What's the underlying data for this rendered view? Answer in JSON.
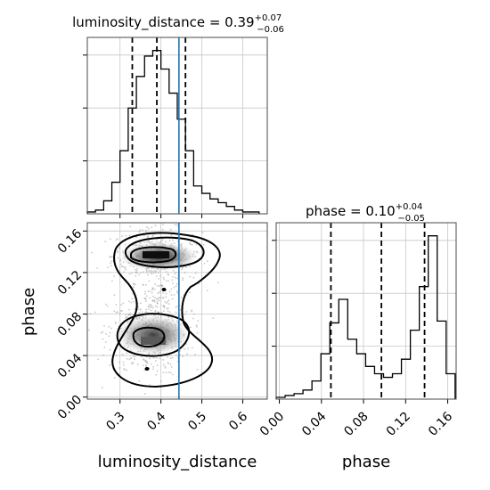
{
  "truth_color": "#1f77b4",
  "panels": {
    "luminosity_title": {
      "main": "luminosity_distance = 0.39",
      "sup": "+0.07",
      "sub": "−0.06"
    },
    "phase_title": {
      "main": "phase = 0.10",
      "sup": "+0.04",
      "sub": "−0.05"
    },
    "x_label_left": "luminosity_distance",
    "x_label_right": "phase",
    "y_label_left": "phase"
  },
  "chart_data": [
    {
      "type": "histogram",
      "variable": "luminosity_distance",
      "xlim": [
        0.22,
        0.66
      ],
      "bin_edges": [
        0.22,
        0.24,
        0.26,
        0.28,
        0.3,
        0.32,
        0.34,
        0.36,
        0.38,
        0.4,
        0.42,
        0.44,
        0.46,
        0.48,
        0.5,
        0.52,
        0.54,
        0.56,
        0.58,
        0.6,
        0.62,
        0.64
      ],
      "counts": [
        1,
        2,
        7,
        17,
        34,
        57,
        74,
        85,
        88,
        78,
        65,
        51,
        34,
        15,
        11,
        8,
        6,
        4,
        2,
        1,
        1
      ],
      "quantiles": [
        0.33,
        0.39,
        0.46
      ],
      "truth": 0.444,
      "x_ticks": [
        0.3,
        0.4,
        0.5,
        0.6
      ],
      "y_ticks_unlabeled": 3,
      "grid": true
    },
    {
      "type": "scatter-contour",
      "x_variable": "luminosity_distance",
      "y_variable": "phase",
      "xlim": [
        0.22,
        0.66
      ],
      "ylim": [
        -0.002,
        0.168
      ],
      "x_ticks": [
        0.3,
        0.4,
        0.5,
        0.6
      ],
      "x_tick_labels": [
        "0.3",
        "0.4",
        "0.5",
        "0.6"
      ],
      "y_ticks": [
        0.0,
        0.04,
        0.08,
        0.12,
        0.16
      ],
      "y_tick_labels": [
        "0.00",
        "0.04",
        "0.08",
        "0.12",
        "0.16"
      ],
      "xlabel": "luminosity_distance",
      "ylabel": "phase",
      "truth_x": 0.444,
      "modes": [
        {
          "center_x": 0.39,
          "center_y": 0.136
        },
        {
          "center_x": 0.37,
          "center_y": 0.06
        }
      ],
      "grid": true
    },
    {
      "type": "histogram",
      "variable": "phase",
      "xlim": [
        -0.003,
        0.168
      ],
      "bin_edges": [
        -0.003,
        0.0055,
        0.014,
        0.0225,
        0.031,
        0.0395,
        0.048,
        0.0565,
        0.065,
        0.0735,
        0.082,
        0.0905,
        0.099,
        0.1075,
        0.116,
        0.1245,
        0.133,
        0.1415,
        0.15,
        0.1585,
        0.167
      ],
      "counts": [
        1,
        2,
        3,
        5,
        10,
        25,
        42,
        55,
        33,
        25,
        18,
        14,
        12,
        14,
        22,
        38,
        62,
        90,
        43,
        14
      ],
      "quantiles": [
        0.049,
        0.097,
        0.138
      ],
      "x_ticks": [
        0.0,
        0.04,
        0.08,
        0.12,
        0.16
      ],
      "x_tick_labels": [
        "0.00",
        "0.04",
        "0.08",
        "0.12",
        "0.16"
      ],
      "xlabel": "phase",
      "y_ticks_unlabeled": 3,
      "grid": true
    }
  ]
}
